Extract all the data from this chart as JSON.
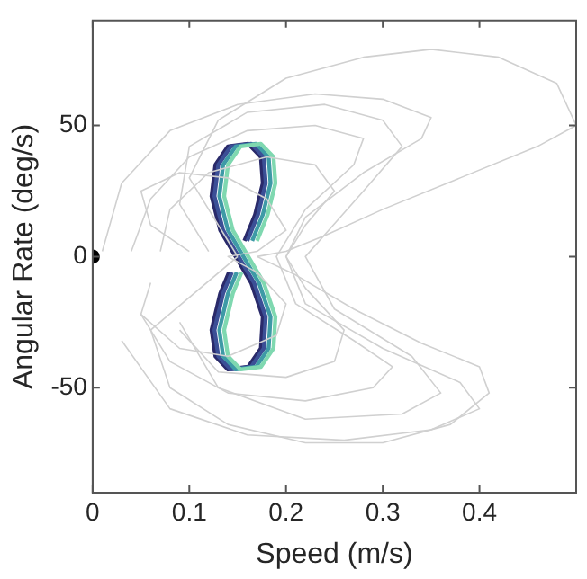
{
  "chart_data": {
    "type": "line",
    "xlabel": "Speed (m/s)",
    "ylabel": "Angular Rate (deg/s)",
    "xlim": [
      0,
      0.5
    ],
    "xticks": [
      0,
      0.1,
      0.2,
      0.3,
      0.4
    ],
    "ylim": [
      -90,
      90
    ],
    "yticks": [
      -50,
      0,
      50
    ],
    "grid": false,
    "legend": false,
    "series": [
      {
        "color": "#d0d0d0",
        "x": [
          0.15,
          0.1,
          0.13,
          0.2,
          0.28,
          0.35,
          0.42,
          0.48,
          0.5,
          0.46,
          0.38,
          0.3,
          0.24,
          0.2,
          0.17
        ],
        "values": [
          0,
          30,
          52,
          68,
          76,
          79,
          76,
          66,
          50,
          42,
          30,
          18,
          8,
          2,
          0
        ]
      },
      {
        "color": "#d0d0d0",
        "x": [
          0.15,
          0.06,
          0.08,
          0.14,
          0.22,
          0.3,
          0.37,
          0.41,
          0.4,
          0.34,
          0.27,
          0.21,
          0.17
        ],
        "values": [
          0,
          -28,
          -50,
          -64,
          -71,
          -71,
          -64,
          -52,
          -42,
          -33,
          -20,
          -7,
          0
        ]
      },
      {
        "color": "#d0d0d0",
        "x": [
          0.01,
          0.03,
          0.08,
          0.15,
          0.23,
          0.3,
          0.35,
          0.34,
          0.28,
          0.22,
          0.2,
          0.22,
          0.3,
          0.38,
          0.4,
          0.35,
          0.26,
          0.16,
          0.08,
          0.03
        ],
        "values": [
          2,
          28,
          48,
          58,
          62,
          60,
          53,
          45,
          32,
          15,
          0,
          -18,
          -35,
          -48,
          -58,
          -66,
          -70,
          -68,
          -58,
          -32
        ]
      },
      {
        "color": "#d0d0d0",
        "x": [
          0.04,
          0.06,
          0.1,
          0.16,
          0.23,
          0.28,
          0.27,
          0.22,
          0.19,
          0.21,
          0.27,
          0.31,
          0.29,
          0.22,
          0.14,
          0.08,
          0.05
        ],
        "values": [
          2,
          22,
          38,
          48,
          50,
          45,
          35,
          18,
          0,
          -18,
          -32,
          -42,
          -50,
          -55,
          -52,
          -40,
          -22
        ]
      },
      {
        "color": "#d0d0d0",
        "x": [
          0.07,
          0.08,
          0.12,
          0.18,
          0.23,
          0.25,
          0.22,
          0.2,
          0.22,
          0.26,
          0.25,
          0.2,
          0.13,
          0.09
        ],
        "values": [
          2,
          18,
          32,
          38,
          35,
          25,
          12,
          0,
          -12,
          -28,
          -40,
          -46,
          -44,
          -28
        ]
      },
      {
        "color": "#d0d0d0",
        "x": [
          0.1,
          0.06,
          0.05,
          0.09,
          0.14,
          0.18,
          0.2,
          0.17,
          0.14,
          0.17,
          0.2,
          0.19,
          0.14,
          0.09,
          0.05,
          0.06
        ],
        "values": [
          2,
          12,
          25,
          32,
          30,
          22,
          10,
          2,
          0,
          -6,
          -18,
          -30,
          -38,
          -35,
          -22,
          -10
        ]
      },
      {
        "color": "#d0d0d0",
        "x": [
          0.12,
          0.09,
          0.1,
          0.16,
          0.24,
          0.3,
          0.32,
          0.28,
          0.22,
          0.25,
          0.33,
          0.36,
          0.32,
          0.22,
          0.13,
          0.09
        ],
        "values": [
          2,
          20,
          42,
          55,
          58,
          52,
          42,
          25,
          0,
          -20,
          -38,
          -52,
          -60,
          -62,
          -50,
          -25
        ]
      },
      {
        "color": "#7fd8b0",
        "x": [
          0.17,
          0.181,
          0.189,
          0.187,
          0.174,
          0.153,
          0.14,
          0.136,
          0.145,
          0.177,
          0.189,
          0.187,
          0.174,
          0.153,
          0.14,
          0.136,
          0.145,
          0.154
        ],
        "values": [
          6,
          16,
          28,
          38,
          43,
          42,
          35,
          23,
          10,
          -10,
          -23,
          -35,
          -42,
          -43,
          -38,
          -28,
          -14,
          -6
        ]
      },
      {
        "color": "#3e9aa6",
        "x": [
          0.165,
          0.176,
          0.184,
          0.182,
          0.169,
          0.148,
          0.135,
          0.131,
          0.14,
          0.172,
          0.184,
          0.182,
          0.169,
          0.148,
          0.135,
          0.131,
          0.14,
          0.149
        ],
        "values": [
          6,
          16,
          28,
          38,
          43,
          42,
          35,
          23,
          10,
          -10,
          -23,
          -35,
          -42,
          -43,
          -38,
          -28,
          -14,
          -6
        ]
      },
      {
        "color": "#3b4f96",
        "x": [
          0.16,
          0.171,
          0.179,
          0.177,
          0.164,
          0.143,
          0.13,
          0.126,
          0.135,
          0.167,
          0.179,
          0.177,
          0.164,
          0.143,
          0.13,
          0.126,
          0.135,
          0.144
        ],
        "values": [
          6,
          16,
          28,
          38,
          43,
          42,
          35,
          23,
          10,
          -10,
          -23,
          -35,
          -42,
          -43,
          -38,
          -28,
          -14,
          -6
        ]
      },
      {
        "color": "#2a2a6a",
        "x": [
          0.157,
          0.168,
          0.176,
          0.174,
          0.161,
          0.14,
          0.127,
          0.123,
          0.132,
          0.164,
          0.176,
          0.174,
          0.161,
          0.14,
          0.127,
          0.123,
          0.132,
          0.141
        ],
        "values": [
          6,
          16,
          28,
          38,
          43,
          42,
          35,
          23,
          10,
          -10,
          -23,
          -35,
          -42,
          -43,
          -38,
          -28,
          -14,
          -6
        ]
      },
      {
        "type": "scatter",
        "color": "#000000",
        "x": [
          0
        ],
        "values": [
          0
        ]
      }
    ]
  }
}
